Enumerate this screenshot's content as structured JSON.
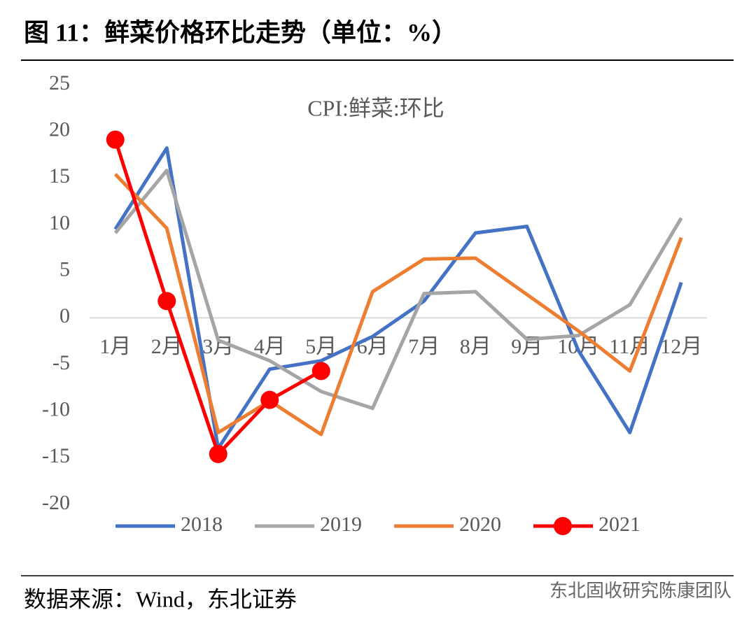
{
  "header": {
    "title": "图 11：鲜菜价格环比走势（单位：%）"
  },
  "chart_data": {
    "type": "line",
    "title": "CPI:鲜菜:环比",
    "categories": [
      "1月",
      "2月",
      "3月",
      "4月",
      "5月",
      "6月",
      "7月",
      "8月",
      "9月",
      "10月",
      "11月",
      "12月"
    ],
    "series": [
      {
        "name": "2018",
        "color": "#4472c4",
        "values": [
          9.5,
          18.2,
          -14,
          -5.5,
          -4.6,
          -2,
          1.8,
          9.1,
          9.8,
          -3.5,
          -12.3,
          3.8
        ]
      },
      {
        "name": "2019",
        "color": "#a5a5a5",
        "values": [
          9.1,
          15.8,
          -2.4,
          -4.6,
          -7.9,
          -9.7,
          2.6,
          2.8,
          -2.3,
          -1.9,
          1.4,
          10.7
        ]
      },
      {
        "name": "2020",
        "color": "#ed7d31",
        "values": [
          15.4,
          9.6,
          -12.3,
          -8.9,
          -12.5,
          2.8,
          6.3,
          6.4,
          2.5,
          -1.4,
          -5.7,
          8.6
        ]
      },
      {
        "name": "2021",
        "color": "#ff0000",
        "markers": true,
        "values": [
          19.1,
          1.8,
          -14.6,
          -8.8,
          -5.7,
          null,
          null,
          null,
          null,
          null,
          null,
          null
        ]
      }
    ],
    "ylim": [
      -20,
      25
    ],
    "yticks": [
      -20,
      -15,
      -10,
      -5,
      0,
      5,
      10,
      15,
      20,
      25
    ],
    "grid": false,
    "legend": "bottom"
  },
  "footer": {
    "source": "数据来源：Wind，东北证券",
    "watermark": "东北固收研究陈康团队"
  }
}
